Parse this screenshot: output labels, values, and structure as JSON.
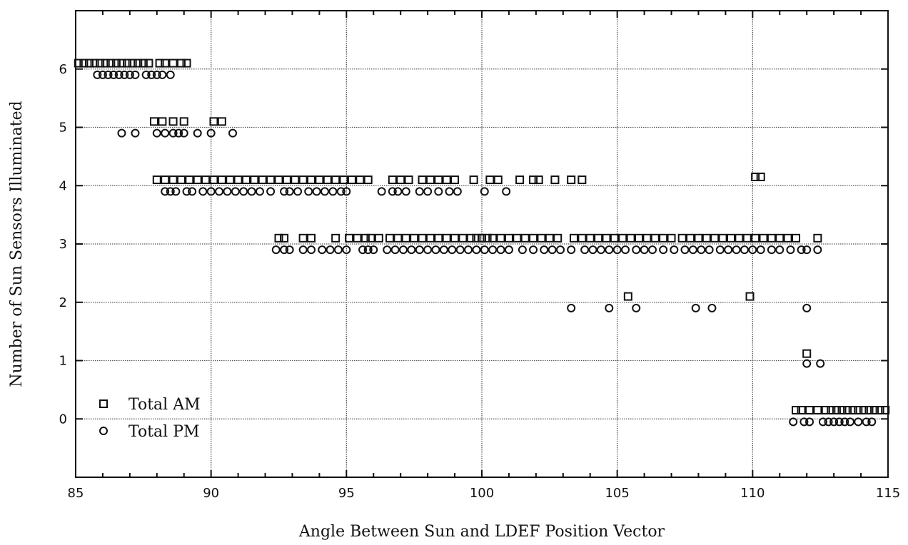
{
  "chart_data": {
    "type": "scatter",
    "title": "",
    "xlabel": "Angle Between Sun and LDEF Position Vector",
    "ylabel": "Number of Sun Sensors Illuminated",
    "xlim": [
      85,
      115
    ],
    "ylim": [
      -1,
      7
    ],
    "xticks": [
      85,
      90,
      95,
      100,
      105,
      110,
      115
    ],
    "yticks": [
      0,
      1,
      2,
      3,
      4,
      5,
      6
    ],
    "grid": true,
    "legend_position": "bottom-left",
    "series": [
      {
        "name": "Total AM",
        "marker": "square",
        "color": "#111111",
        "points": [
          [
            85.1,
            6.1
          ],
          [
            85.3,
            6.1
          ],
          [
            85.5,
            6.1
          ],
          [
            85.7,
            6.1
          ],
          [
            85.9,
            6.1
          ],
          [
            86.1,
            6.1
          ],
          [
            86.3,
            6.1
          ],
          [
            86.5,
            6.1
          ],
          [
            86.7,
            6.1
          ],
          [
            86.9,
            6.1
          ],
          [
            87.1,
            6.1
          ],
          [
            87.3,
            6.1
          ],
          [
            87.5,
            6.1
          ],
          [
            87.7,
            6.1
          ],
          [
            88.1,
            6.1
          ],
          [
            88.3,
            6.1
          ],
          [
            88.6,
            6.1
          ],
          [
            88.9,
            6.1
          ],
          [
            89.1,
            6.1
          ],
          [
            87.9,
            5.1
          ],
          [
            88.2,
            5.1
          ],
          [
            88.6,
            5.1
          ],
          [
            89.0,
            5.1
          ],
          [
            90.1,
            5.1
          ],
          [
            90.4,
            5.1
          ],
          [
            88.0,
            4.1
          ],
          [
            88.3,
            4.1
          ],
          [
            88.6,
            4.1
          ],
          [
            88.9,
            4.1
          ],
          [
            89.2,
            4.1
          ],
          [
            89.5,
            4.1
          ],
          [
            89.8,
            4.1
          ],
          [
            90.1,
            4.1
          ],
          [
            90.4,
            4.1
          ],
          [
            90.7,
            4.1
          ],
          [
            91.0,
            4.1
          ],
          [
            91.3,
            4.1
          ],
          [
            91.6,
            4.1
          ],
          [
            91.9,
            4.1
          ],
          [
            92.2,
            4.1
          ],
          [
            92.5,
            4.1
          ],
          [
            92.8,
            4.1
          ],
          [
            93.1,
            4.1
          ],
          [
            93.4,
            4.1
          ],
          [
            93.7,
            4.1
          ],
          [
            94.0,
            4.1
          ],
          [
            94.3,
            4.1
          ],
          [
            94.6,
            4.1
          ],
          [
            94.9,
            4.1
          ],
          [
            95.2,
            4.1
          ],
          [
            95.5,
            4.1
          ],
          [
            95.8,
            4.1
          ],
          [
            96.7,
            4.1
          ],
          [
            97.0,
            4.1
          ],
          [
            97.3,
            4.1
          ],
          [
            97.8,
            4.1
          ],
          [
            98.1,
            4.1
          ],
          [
            98.4,
            4.1
          ],
          [
            98.7,
            4.1
          ],
          [
            99.0,
            4.1
          ],
          [
            99.7,
            4.1
          ],
          [
            100.3,
            4.1
          ],
          [
            100.6,
            4.1
          ],
          [
            101.4,
            4.1
          ],
          [
            101.9,
            4.1
          ],
          [
            102.1,
            4.1
          ],
          [
            102.7,
            4.1
          ],
          [
            103.3,
            4.1
          ],
          [
            103.7,
            4.1
          ],
          [
            110.1,
            4.15
          ],
          [
            110.3,
            4.15
          ],
          [
            92.5,
            3.1
          ],
          [
            92.7,
            3.1
          ],
          [
            93.4,
            3.1
          ],
          [
            93.7,
            3.1
          ],
          [
            94.6,
            3.1
          ],
          [
            95.1,
            3.1
          ],
          [
            95.4,
            3.1
          ],
          [
            95.7,
            3.1
          ],
          [
            95.9,
            3.1
          ],
          [
            96.2,
            3.1
          ],
          [
            96.6,
            3.1
          ],
          [
            96.9,
            3.1
          ],
          [
            97.2,
            3.1
          ],
          [
            97.5,
            3.1
          ],
          [
            97.8,
            3.1
          ],
          [
            98.1,
            3.1
          ],
          [
            98.4,
            3.1
          ],
          [
            98.7,
            3.1
          ],
          [
            99.0,
            3.1
          ],
          [
            99.3,
            3.1
          ],
          [
            99.6,
            3.1
          ],
          [
            99.8,
            3.1
          ],
          [
            100.0,
            3.1
          ],
          [
            100.2,
            3.1
          ],
          [
            100.4,
            3.1
          ],
          [
            100.7,
            3.1
          ],
          [
            101.0,
            3.1
          ],
          [
            101.3,
            3.1
          ],
          [
            101.6,
            3.1
          ],
          [
            101.9,
            3.1
          ],
          [
            102.2,
            3.1
          ],
          [
            102.5,
            3.1
          ],
          [
            102.8,
            3.1
          ],
          [
            103.4,
            3.1
          ],
          [
            103.7,
            3.1
          ],
          [
            104.0,
            3.1
          ],
          [
            104.3,
            3.1
          ],
          [
            104.6,
            3.1
          ],
          [
            104.9,
            3.1
          ],
          [
            105.2,
            3.1
          ],
          [
            105.5,
            3.1
          ],
          [
            105.8,
            3.1
          ],
          [
            106.1,
            3.1
          ],
          [
            106.4,
            3.1
          ],
          [
            106.7,
            3.1
          ],
          [
            107.0,
            3.1
          ],
          [
            107.4,
            3.1
          ],
          [
            107.7,
            3.1
          ],
          [
            108.0,
            3.1
          ],
          [
            108.3,
            3.1
          ],
          [
            108.6,
            3.1
          ],
          [
            108.9,
            3.1
          ],
          [
            109.2,
            3.1
          ],
          [
            109.5,
            3.1
          ],
          [
            109.8,
            3.1
          ],
          [
            110.1,
            3.1
          ],
          [
            110.4,
            3.1
          ],
          [
            110.7,
            3.1
          ],
          [
            111.0,
            3.1
          ],
          [
            111.3,
            3.1
          ],
          [
            111.6,
            3.1
          ],
          [
            112.4,
            3.1
          ],
          [
            105.4,
            2.1
          ],
          [
            109.9,
            2.1
          ],
          [
            112.0,
            1.12
          ],
          [
            111.6,
            0.15
          ],
          [
            111.8,
            0.15
          ],
          [
            112.1,
            0.15
          ],
          [
            112.4,
            0.15
          ],
          [
            112.7,
            0.15
          ],
          [
            112.9,
            0.15
          ],
          [
            113.1,
            0.15
          ],
          [
            113.3,
            0.15
          ],
          [
            113.5,
            0.15
          ],
          [
            113.7,
            0.15
          ],
          [
            113.9,
            0.15
          ],
          [
            114.1,
            0.15
          ],
          [
            114.3,
            0.15
          ],
          [
            114.5,
            0.15
          ],
          [
            114.7,
            0.15
          ],
          [
            114.9,
            0.15
          ]
        ]
      },
      {
        "name": "Total PM",
        "marker": "circle",
        "color": "#111111",
        "points": [
          [
            85.8,
            5.9
          ],
          [
            86.0,
            5.9
          ],
          [
            86.2,
            5.9
          ],
          [
            86.4,
            5.9
          ],
          [
            86.6,
            5.9
          ],
          [
            86.8,
            5.9
          ],
          [
            87.0,
            5.9
          ],
          [
            87.2,
            5.9
          ],
          [
            87.6,
            5.9
          ],
          [
            87.8,
            5.9
          ],
          [
            88.0,
            5.9
          ],
          [
            88.2,
            5.9
          ],
          [
            88.5,
            5.9
          ],
          [
            86.7,
            4.9
          ],
          [
            87.2,
            4.9
          ],
          [
            88.0,
            4.9
          ],
          [
            88.3,
            4.9
          ],
          [
            88.6,
            4.9
          ],
          [
            88.8,
            4.9
          ],
          [
            89.0,
            4.9
          ],
          [
            89.5,
            4.9
          ],
          [
            90.0,
            4.9
          ],
          [
            90.8,
            4.9
          ],
          [
            88.3,
            3.9
          ],
          [
            88.5,
            3.9
          ],
          [
            88.7,
            3.9
          ],
          [
            89.1,
            3.9
          ],
          [
            89.3,
            3.9
          ],
          [
            89.7,
            3.9
          ],
          [
            90.0,
            3.9
          ],
          [
            90.3,
            3.9
          ],
          [
            90.6,
            3.9
          ],
          [
            90.9,
            3.9
          ],
          [
            91.2,
            3.9
          ],
          [
            91.5,
            3.9
          ],
          [
            91.8,
            3.9
          ],
          [
            92.2,
            3.9
          ],
          [
            92.7,
            3.9
          ],
          [
            92.9,
            3.9
          ],
          [
            93.2,
            3.9
          ],
          [
            93.6,
            3.9
          ],
          [
            93.9,
            3.9
          ],
          [
            94.2,
            3.9
          ],
          [
            94.5,
            3.9
          ],
          [
            94.8,
            3.9
          ],
          [
            95.0,
            3.9
          ],
          [
            96.3,
            3.9
          ],
          [
            96.7,
            3.9
          ],
          [
            96.9,
            3.9
          ],
          [
            97.2,
            3.9
          ],
          [
            97.7,
            3.9
          ],
          [
            98.0,
            3.9
          ],
          [
            98.4,
            3.9
          ],
          [
            98.8,
            3.9
          ],
          [
            99.1,
            3.9
          ],
          [
            100.1,
            3.9
          ],
          [
            100.9,
            3.9
          ],
          [
            92.4,
            2.9
          ],
          [
            92.7,
            2.9
          ],
          [
            92.9,
            2.9
          ],
          [
            93.4,
            2.9
          ],
          [
            93.7,
            2.9
          ],
          [
            94.1,
            2.9
          ],
          [
            94.4,
            2.9
          ],
          [
            94.7,
            2.9
          ],
          [
            95.0,
            2.9
          ],
          [
            95.6,
            2.9
          ],
          [
            95.8,
            2.9
          ],
          [
            96.0,
            2.9
          ],
          [
            96.5,
            2.9
          ],
          [
            96.8,
            2.9
          ],
          [
            97.1,
            2.9
          ],
          [
            97.4,
            2.9
          ],
          [
            97.7,
            2.9
          ],
          [
            98.0,
            2.9
          ],
          [
            98.3,
            2.9
          ],
          [
            98.6,
            2.9
          ],
          [
            98.9,
            2.9
          ],
          [
            99.2,
            2.9
          ],
          [
            99.5,
            2.9
          ],
          [
            99.8,
            2.9
          ],
          [
            100.1,
            2.9
          ],
          [
            100.4,
            2.9
          ],
          [
            100.7,
            2.9
          ],
          [
            101.0,
            2.9
          ],
          [
            101.5,
            2.9
          ],
          [
            101.9,
            2.9
          ],
          [
            102.3,
            2.9
          ],
          [
            102.6,
            2.9
          ],
          [
            102.9,
            2.9
          ],
          [
            103.3,
            2.9
          ],
          [
            103.8,
            2.9
          ],
          [
            104.1,
            2.9
          ],
          [
            104.4,
            2.9
          ],
          [
            104.7,
            2.9
          ],
          [
            105.0,
            2.9
          ],
          [
            105.3,
            2.9
          ],
          [
            105.7,
            2.9
          ],
          [
            106.0,
            2.9
          ],
          [
            106.3,
            2.9
          ],
          [
            106.7,
            2.9
          ],
          [
            107.1,
            2.9
          ],
          [
            107.5,
            2.9
          ],
          [
            107.8,
            2.9
          ],
          [
            108.1,
            2.9
          ],
          [
            108.4,
            2.9
          ],
          [
            108.8,
            2.9
          ],
          [
            109.1,
            2.9
          ],
          [
            109.4,
            2.9
          ],
          [
            109.7,
            2.9
          ],
          [
            110.0,
            2.9
          ],
          [
            110.3,
            2.9
          ],
          [
            110.7,
            2.9
          ],
          [
            111.0,
            2.9
          ],
          [
            111.4,
            2.9
          ],
          [
            111.8,
            2.9
          ],
          [
            112.0,
            2.9
          ],
          [
            112.4,
            2.9
          ],
          [
            103.3,
            1.9
          ],
          [
            104.7,
            1.9
          ],
          [
            105.7,
            1.9
          ],
          [
            107.9,
            1.9
          ],
          [
            108.5,
            1.9
          ],
          [
            112.0,
            1.9
          ],
          [
            112.0,
            0.95
          ],
          [
            112.5,
            0.95
          ],
          [
            111.5,
            -0.05
          ],
          [
            111.9,
            -0.05
          ],
          [
            112.1,
            -0.05
          ],
          [
            112.6,
            -0.05
          ],
          [
            112.8,
            -0.05
          ],
          [
            113.0,
            -0.05
          ],
          [
            113.2,
            -0.05
          ],
          [
            113.4,
            -0.05
          ],
          [
            113.6,
            -0.05
          ],
          [
            113.9,
            -0.05
          ],
          [
            114.2,
            -0.05
          ],
          [
            114.4,
            -0.05
          ]
        ]
      }
    ]
  }
}
